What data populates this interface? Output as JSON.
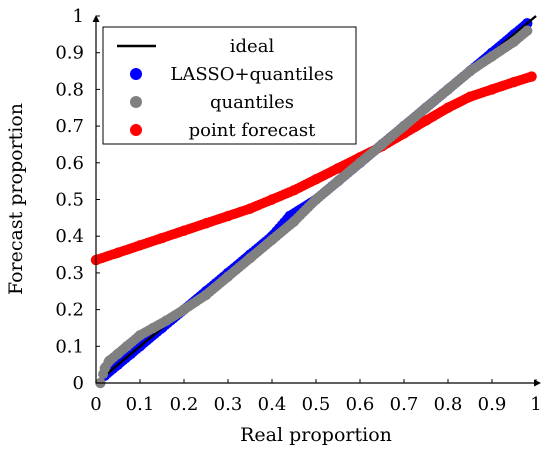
{
  "chart_data": {
    "type": "scatter",
    "xlabel": "Real proportion",
    "ylabel": "Forecast proportion",
    "xlim": [
      0,
      1
    ],
    "ylim": [
      0,
      1
    ],
    "x_ticks": [
      "0",
      "0.1",
      "0.2",
      "0.3",
      "0.4",
      "0.5",
      "0.6",
      "0.7",
      "0.8",
      "0.9",
      "1"
    ],
    "y_ticks": [
      "0",
      "0.1",
      "0.2",
      "0.3",
      "0.4",
      "0.5",
      "0.6",
      "0.7",
      "0.8",
      "0.9",
      "1"
    ],
    "grid": false,
    "legend_position": "top-left",
    "series": [
      {
        "name": "ideal",
        "kind": "line",
        "color": "#000000",
        "x": [
          0,
          1
        ],
        "y": [
          0,
          1
        ]
      },
      {
        "name": "LASSO+quantiles",
        "kind": "scatter",
        "color": "#0000ff",
        "x": [
          0.02,
          0.05,
          0.08,
          0.1,
          0.15,
          0.2,
          0.25,
          0.3,
          0.35,
          0.4,
          0.44,
          0.5,
          0.55,
          0.6,
          0.65,
          0.7,
          0.75,
          0.8,
          0.85,
          0.9,
          0.95,
          0.98
        ],
        "y": [
          0.02,
          0.05,
          0.08,
          0.1,
          0.15,
          0.2,
          0.25,
          0.3,
          0.35,
          0.4,
          0.455,
          0.5,
          0.55,
          0.6,
          0.65,
          0.7,
          0.75,
          0.8,
          0.85,
          0.9,
          0.95,
          0.98
        ]
      },
      {
        "name": "quantiles",
        "kind": "scatter",
        "color": "#808080",
        "x": [
          0.01,
          0.02,
          0.03,
          0.05,
          0.07,
          0.1,
          0.13,
          0.16,
          0.2,
          0.25,
          0.3,
          0.35,
          0.4,
          0.45,
          0.5,
          0.55,
          0.6,
          0.65,
          0.7,
          0.75,
          0.8,
          0.85,
          0.9,
          0.95,
          0.98
        ],
        "y": [
          0.0,
          0.04,
          0.06,
          0.08,
          0.1,
          0.13,
          0.15,
          0.17,
          0.2,
          0.24,
          0.29,
          0.34,
          0.39,
          0.44,
          0.5,
          0.55,
          0.6,
          0.65,
          0.7,
          0.75,
          0.8,
          0.85,
          0.89,
          0.93,
          0.96
        ]
      },
      {
        "name": "point forecast",
        "kind": "scatter",
        "color": "#ff0000",
        "x": [
          0.0,
          0.05,
          0.1,
          0.15,
          0.2,
          0.25,
          0.3,
          0.35,
          0.4,
          0.45,
          0.5,
          0.55,
          0.6,
          0.65,
          0.7,
          0.75,
          0.8,
          0.85,
          0.9,
          0.95,
          0.99
        ],
        "y": [
          0.335,
          0.355,
          0.375,
          0.395,
          0.415,
          0.435,
          0.455,
          0.475,
          0.5,
          0.525,
          0.555,
          0.585,
          0.615,
          0.645,
          0.68,
          0.715,
          0.75,
          0.78,
          0.8,
          0.82,
          0.835
        ]
      }
    ]
  }
}
